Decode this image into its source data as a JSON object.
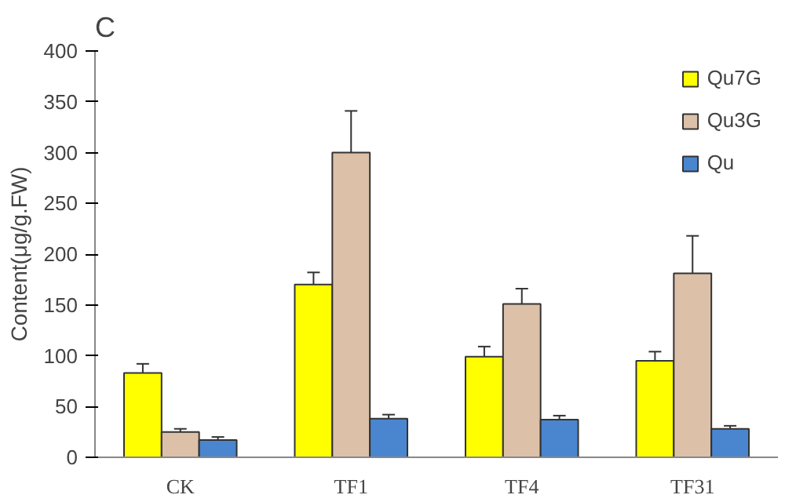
{
  "chart_data": {
    "type": "bar",
    "title": "C",
    "ylabel": "Content(μg/g.FW)",
    "categories": [
      "CK",
      "TF1",
      "TF4",
      "TF31"
    ],
    "series": [
      {
        "name": "Qu7G",
        "color": "#ffff00",
        "values": [
          83,
          170,
          99,
          95
        ],
        "errors": [
          9,
          12,
          10,
          9
        ]
      },
      {
        "name": "Qu3G",
        "color": "#dcc0a8",
        "values": [
          25,
          300,
          151,
          181
        ],
        "errors": [
          3,
          41,
          15,
          37
        ]
      },
      {
        "name": "Qu",
        "color": "#4a86d0",
        "values": [
          17,
          38,
          37,
          28
        ],
        "errors": [
          3,
          4,
          4,
          3
        ]
      }
    ],
    "ylim": [
      0,
      400
    ],
    "yticks": [
      0,
      50,
      100,
      150,
      200,
      250,
      300,
      350,
      400
    ],
    "grid": false,
    "legend": "top right"
  }
}
